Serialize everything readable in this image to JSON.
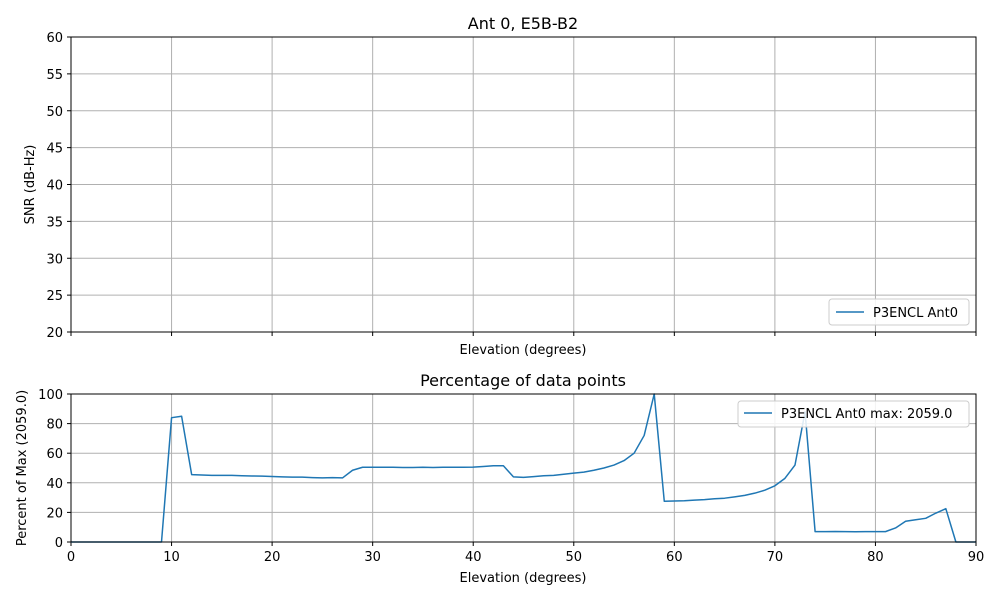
{
  "chart_data": [
    {
      "type": "line",
      "title": "Ant 0, E5B-B2",
      "xlabel": "Elevation (degrees)",
      "ylabel": "SNR (dB-Hz)",
      "xlim": [
        0,
        90
      ],
      "ylim": [
        20,
        60
      ],
      "x_ticks": [
        0,
        10,
        20,
        30,
        40,
        50,
        60,
        70,
        80,
        90
      ],
      "x_tick_labels_visible": false,
      "y_ticks": [
        20,
        25,
        30,
        35,
        40,
        45,
        50,
        55,
        60
      ],
      "grid": true,
      "legend_position": "lower-right",
      "series": [
        {
          "name": "P3ENCL Ant0",
          "color": "#1f77b4",
          "x": [],
          "y": []
        }
      ]
    },
    {
      "type": "line",
      "title": "Percentage of data points",
      "xlabel": "Elevation (degrees)",
      "ylabel": "Percent of Max (2059.0)",
      "xlim": [
        0,
        90
      ],
      "ylim": [
        0,
        100
      ],
      "x_ticks": [
        0,
        10,
        20,
        30,
        40,
        50,
        60,
        70,
        80,
        90
      ],
      "y_ticks": [
        0,
        20,
        40,
        60,
        80,
        100
      ],
      "grid": true,
      "legend_position": "upper-right",
      "series": [
        {
          "name": "P3ENCL Ant0 max: 2059.0",
          "color": "#1f77b4",
          "x": [
            0,
            1,
            2,
            3,
            4,
            5,
            6,
            7,
            8,
            9,
            10,
            11,
            12,
            13,
            14,
            15,
            16,
            17,
            18,
            19,
            20,
            21,
            22,
            23,
            24,
            25,
            26,
            27,
            28,
            29,
            30,
            31,
            32,
            33,
            34,
            35,
            36,
            37,
            38,
            39,
            40,
            41,
            42,
            43,
            44,
            45,
            46,
            47,
            48,
            49,
            50,
            51,
            52,
            53,
            54,
            55,
            56,
            57,
            58,
            59,
            60,
            61,
            62,
            63,
            64,
            65,
            66,
            67,
            68,
            69,
            70,
            71,
            72,
            73,
            74,
            75,
            76,
            77,
            78,
            79,
            80,
            81,
            82,
            83,
            84,
            85,
            86,
            87,
            88,
            89,
            90
          ],
          "y": [
            0,
            0,
            0,
            0,
            0,
            0,
            0,
            0,
            0,
            0,
            84,
            85,
            45.5,
            45.3,
            45,
            45,
            45,
            44.8,
            44.6,
            44.5,
            44.3,
            44,
            43.8,
            43.8,
            43.5,
            43.3,
            43.5,
            43.3,
            48.5,
            50.5,
            50.5,
            50.5,
            50.5,
            50.3,
            50.3,
            50.5,
            50.3,
            50.5,
            50.5,
            50.5,
            50.6,
            51,
            51.5,
            51.5,
            44,
            43.7,
            44.2,
            44.8,
            45,
            45.8,
            46.5,
            47.2,
            48.5,
            50,
            52,
            55,
            60,
            72,
            100,
            27.5,
            27.7,
            27.9,
            28.3,
            28.6,
            29.2,
            29.6,
            30.5,
            31.5,
            33,
            35,
            38,
            43,
            52,
            88,
            7,
            7,
            7.1,
            7,
            6.9,
            7,
            7,
            7,
            9.5,
            14,
            15,
            16,
            19.5,
            22.5,
            0,
            0,
            0
          ]
        }
      ]
    }
  ]
}
